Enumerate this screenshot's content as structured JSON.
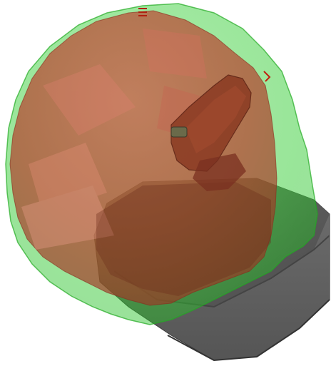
{
  "scene": {
    "background": "#ffffff",
    "objects": [
      {
        "name": "outer-volume",
        "color": "#22cc22",
        "opacity": 0.45
      },
      {
        "name": "inner-volume",
        "color": "#c0392b",
        "opacity": 0.6
      },
      {
        "name": "robot-base",
        "color": "#5a5a5a"
      },
      {
        "name": "robot-arm",
        "color": "#8a3a22"
      }
    ]
  }
}
